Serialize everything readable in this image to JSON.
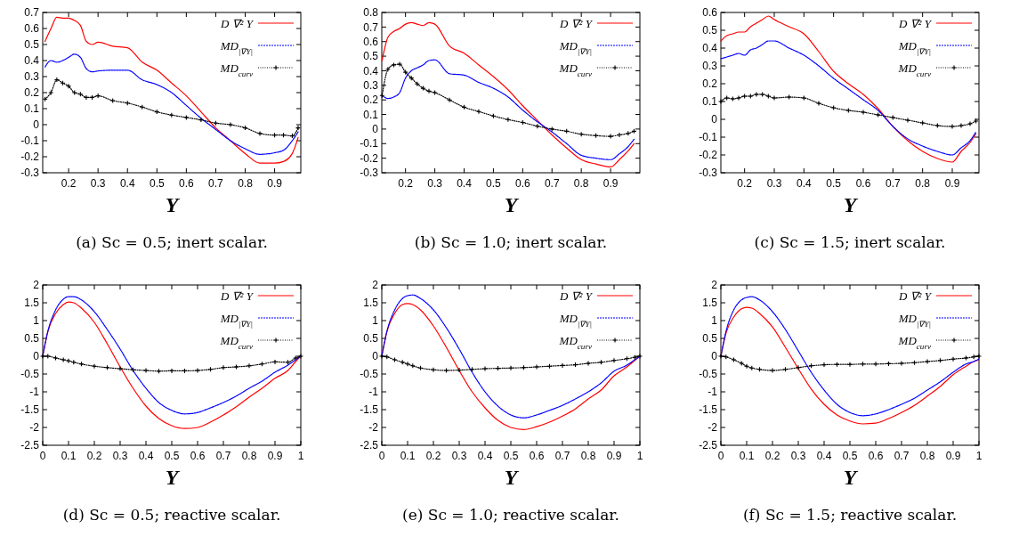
{
  "chart_data": [
    {
      "type": "line",
      "title": "(a) Sc = 0.5; inert scalar.",
      "xlabel": "Y",
      "xlim": [
        0.112,
        0.989
      ],
      "xticks": [
        0.2,
        0.3,
        0.4,
        0.5,
        0.6,
        0.7,
        0.8,
        0.9
      ],
      "ylim": [
        -0.3,
        0.7
      ],
      "yticks": [
        -0.3,
        -0.2,
        -0.1,
        0,
        0.1,
        0.2,
        0.3,
        0.4,
        0.5,
        0.6,
        0.7
      ],
      "legend": "top right",
      "grid": false,
      "x": [
        0.12,
        0.14,
        0.16,
        0.18,
        0.2,
        0.22,
        0.24,
        0.26,
        0.28,
        0.3,
        0.35,
        0.4,
        0.45,
        0.5,
        0.55,
        0.6,
        0.65,
        0.7,
        0.75,
        0.8,
        0.85,
        0.9,
        0.93,
        0.96,
        0.98
      ],
      "series": [
        {
          "name": "D ∇² Y",
          "color": "#ff0000",
          "line_style": "solid",
          "marker": "none",
          "values": [
            0.52,
            0.6,
            0.67,
            0.665,
            0.665,
            0.65,
            0.62,
            0.52,
            0.5,
            0.515,
            0.49,
            0.48,
            0.39,
            0.34,
            0.26,
            0.18,
            0.08,
            -0.02,
            -0.1,
            -0.18,
            -0.24,
            -0.24,
            -0.23,
            -0.18,
            -0.08
          ]
        },
        {
          "name": "MD$_{|∇Y|}$",
          "color": "#0000ff",
          "line_style": "dashed",
          "marker": "none",
          "values": [
            0.36,
            0.4,
            0.39,
            0.4,
            0.42,
            0.44,
            0.42,
            0.35,
            0.33,
            0.335,
            0.34,
            0.34,
            0.28,
            0.25,
            0.2,
            0.12,
            0.04,
            -0.03,
            -0.1,
            -0.15,
            -0.185,
            -0.175,
            -0.16,
            -0.1,
            -0.045
          ]
        },
        {
          "name": "MD$_{curv}$",
          "color": "#000000",
          "line_style": "dotted",
          "marker": "cross",
          "values": [
            0.16,
            0.2,
            0.28,
            0.26,
            0.24,
            0.2,
            0.19,
            0.17,
            0.17,
            0.18,
            0.15,
            0.135,
            0.11,
            0.08,
            0.06,
            0.045,
            0.03,
            0.01,
            0,
            -0.02,
            -0.055,
            -0.065,
            -0.065,
            -0.07,
            -0.02
          ]
        }
      ]
    },
    {
      "type": "line",
      "title": "(b) Sc = 1.0; inert scalar.",
      "xlabel": "Y",
      "xlim": [
        0.119,
        1.0
      ],
      "xticks": [
        0.2,
        0.3,
        0.4,
        0.5,
        0.6,
        0.7,
        0.8,
        0.9
      ],
      "ylim": [
        -0.3,
        0.8
      ],
      "yticks": [
        -0.3,
        -0.2,
        -0.1,
        0,
        0.1,
        0.2,
        0.3,
        0.4,
        0.5,
        0.6,
        0.7,
        0.8
      ],
      "legend": "top right",
      "grid": false,
      "x": [
        0.12,
        0.14,
        0.16,
        0.18,
        0.2,
        0.22,
        0.24,
        0.26,
        0.28,
        0.3,
        0.35,
        0.4,
        0.45,
        0.5,
        0.55,
        0.6,
        0.65,
        0.7,
        0.75,
        0.8,
        0.85,
        0.9,
        0.93,
        0.96,
        0.98
      ],
      "series": [
        {
          "name": "D ∇² Y",
          "color": "#ff0000",
          "line_style": "solid",
          "marker": "none",
          "values": [
            0.47,
            0.63,
            0.67,
            0.69,
            0.72,
            0.73,
            0.72,
            0.71,
            0.73,
            0.72,
            0.57,
            0.52,
            0.44,
            0.36,
            0.27,
            0.16,
            0.06,
            -0.04,
            -0.13,
            -0.21,
            -0.24,
            -0.26,
            -0.21,
            -0.15,
            -0.1
          ]
        },
        {
          "name": "MD$_{|∇Y|}$",
          "color": "#0000ff",
          "line_style": "dashed",
          "marker": "none",
          "values": [
            0.23,
            0.21,
            0.22,
            0.25,
            0.35,
            0.4,
            0.42,
            0.44,
            0.47,
            0.475,
            0.38,
            0.37,
            0.32,
            0.28,
            0.22,
            0.13,
            0.05,
            -0.02,
            -0.1,
            -0.18,
            -0.2,
            -0.21,
            -0.17,
            -0.12,
            -0.07
          ]
        },
        {
          "name": "MD$_{curv}$",
          "color": "#000000",
          "line_style": "dotted",
          "marker": "cross",
          "values": [
            0.23,
            0.41,
            0.44,
            0.445,
            0.39,
            0.35,
            0.31,
            0.28,
            0.26,
            0.25,
            0.2,
            0.15,
            0.12,
            0.09,
            0.065,
            0.045,
            0.02,
            0,
            -0.015,
            -0.035,
            -0.045,
            -0.05,
            -0.04,
            -0.03,
            -0.015
          ]
        }
      ]
    },
    {
      "type": "line",
      "title": "(c) Sc = 1.5; inert scalar.",
      "xlabel": "Y",
      "xlim": [
        0.12,
        0.99
      ],
      "xticks": [
        0.2,
        0.3,
        0.4,
        0.5,
        0.6,
        0.7,
        0.8,
        0.9
      ],
      "ylim": [
        -0.3,
        0.6
      ],
      "yticks": [
        -0.3,
        -0.2,
        -0.1,
        0,
        0.1,
        0.2,
        0.3,
        0.4,
        0.5,
        0.6
      ],
      "legend": "top right",
      "grid": false,
      "x": [
        0.12,
        0.14,
        0.16,
        0.18,
        0.2,
        0.22,
        0.24,
        0.26,
        0.28,
        0.3,
        0.35,
        0.4,
        0.45,
        0.5,
        0.55,
        0.6,
        0.65,
        0.7,
        0.75,
        0.8,
        0.85,
        0.9,
        0.93,
        0.96,
        0.98
      ],
      "series": [
        {
          "name": "D ∇² Y",
          "color": "#ff0000",
          "line_style": "solid",
          "marker": "none",
          "values": [
            0.44,
            0.47,
            0.48,
            0.49,
            0.49,
            0.52,
            0.54,
            0.56,
            0.58,
            0.56,
            0.52,
            0.48,
            0.38,
            0.27,
            0.2,
            0.14,
            0.06,
            -0.04,
            -0.12,
            -0.18,
            -0.22,
            -0.24,
            -0.18,
            -0.13,
            -0.08
          ]
        },
        {
          "name": "MD$_{|∇Y|}$",
          "color": "#0000ff",
          "line_style": "dashed",
          "marker": "none",
          "values": [
            0.34,
            0.35,
            0.36,
            0.37,
            0.36,
            0.39,
            0.4,
            0.42,
            0.44,
            0.44,
            0.4,
            0.36,
            0.3,
            0.23,
            0.17,
            0.11,
            0.05,
            -0.04,
            -0.11,
            -0.15,
            -0.18,
            -0.2,
            -0.16,
            -0.12,
            -0.07
          ]
        },
        {
          "name": "MD$_{curv}$",
          "color": "#000000",
          "line_style": "dotted",
          "marker": "cross",
          "values": [
            0.1,
            0.12,
            0.115,
            0.12,
            0.13,
            0.13,
            0.14,
            0.14,
            0.13,
            0.12,
            0.125,
            0.12,
            0.09,
            0.065,
            0.05,
            0.04,
            0.025,
            0.01,
            -0.005,
            -0.02,
            -0.035,
            -0.04,
            -0.035,
            -0.025,
            -0.01
          ]
        }
      ]
    },
    {
      "type": "line",
      "title": "(d) Sc = 0.5; reactive scalar.",
      "xlabel": "Y",
      "xlim": [
        0,
        1
      ],
      "xticks": [
        0,
        0.1,
        0.2,
        0.3,
        0.4,
        0.5,
        0.6,
        0.7,
        0.8,
        0.9,
        1
      ],
      "ylim": [
        -2.5,
        2
      ],
      "yticks": [
        -2.5,
        -2,
        -1.5,
        -1,
        -0.5,
        0,
        0.5,
        1,
        1.5,
        2
      ],
      "legend": "top right",
      "grid": false,
      "x": [
        0,
        0.02,
        0.05,
        0.08,
        0.1,
        0.12,
        0.15,
        0.2,
        0.25,
        0.3,
        0.35,
        0.4,
        0.45,
        0.5,
        0.55,
        0.6,
        0.65,
        0.7,
        0.75,
        0.8,
        0.85,
        0.9,
        0.95,
        0.98,
        1
      ],
      "series": [
        {
          "name": "D ∇² Y",
          "color": "#ff0000",
          "line_style": "solid",
          "marker": "none",
          "values": [
            0,
            0.7,
            1.2,
            1.45,
            1.52,
            1.5,
            1.35,
            0.95,
            0.35,
            -0.3,
            -0.9,
            -1.4,
            -1.75,
            -1.95,
            -2.03,
            -2.0,
            -1.85,
            -1.65,
            -1.42,
            -1.15,
            -0.9,
            -0.62,
            -0.4,
            -0.15,
            0
          ]
        },
        {
          "name": "MD$_{|∇Y|}$",
          "color": "#0000ff",
          "line_style": "dashed",
          "marker": "none",
          "values": [
            0,
            0.7,
            1.3,
            1.6,
            1.67,
            1.67,
            1.58,
            1.25,
            0.75,
            0.2,
            -0.4,
            -0.9,
            -1.3,
            -1.52,
            -1.62,
            -1.58,
            -1.45,
            -1.3,
            -1.12,
            -0.9,
            -0.7,
            -0.45,
            -0.25,
            -0.1,
            0
          ]
        },
        {
          "name": "MD$_{curv}$",
          "color": "#000000",
          "line_style": "dotted",
          "marker": "cross",
          "values": [
            0,
            0,
            -0.05,
            -0.1,
            -0.13,
            -0.17,
            -0.22,
            -0.28,
            -0.32,
            -0.35,
            -0.38,
            -0.4,
            -0.42,
            -0.41,
            -0.41,
            -0.4,
            -0.37,
            -0.32,
            -0.3,
            -0.27,
            -0.22,
            -0.16,
            -0.17,
            -0.05,
            0
          ]
        }
      ]
    },
    {
      "type": "line",
      "title": "(e) Sc = 1.0; reactive scalar.",
      "xlabel": "Y",
      "xlim": [
        0,
        1
      ],
      "xticks": [
        0,
        0.1,
        0.2,
        0.3,
        0.4,
        0.5,
        0.6,
        0.7,
        0.8,
        0.9,
        1
      ],
      "ylim": [
        -2.5,
        2
      ],
      "yticks": [
        -2.5,
        -2,
        -1.5,
        -1,
        -0.5,
        0,
        0.5,
        1,
        1.5,
        2
      ],
      "legend": "top right",
      "grid": false,
      "x": [
        0,
        0.02,
        0.05,
        0.08,
        0.1,
        0.12,
        0.15,
        0.2,
        0.25,
        0.3,
        0.35,
        0.4,
        0.45,
        0.5,
        0.55,
        0.6,
        0.65,
        0.7,
        0.75,
        0.8,
        0.85,
        0.9,
        0.95,
        0.98,
        1
      ],
      "series": [
        {
          "name": "D ∇² Y",
          "color": "#ff0000",
          "line_style": "solid",
          "marker": "none",
          "values": [
            0,
            0.7,
            1.2,
            1.45,
            1.48,
            1.45,
            1.3,
            0.85,
            0.25,
            -0.4,
            -1.0,
            -1.45,
            -1.8,
            -2.0,
            -2.06,
            -1.98,
            -1.85,
            -1.68,
            -1.48,
            -1.2,
            -0.95,
            -0.55,
            -0.3,
            -0.12,
            0
          ]
        },
        {
          "name": "MD$_{|∇Y|}$",
          "color": "#0000ff",
          "line_style": "dashed",
          "marker": "none",
          "values": [
            0,
            0.7,
            1.3,
            1.62,
            1.7,
            1.72,
            1.62,
            1.3,
            0.8,
            0.2,
            -0.45,
            -1.0,
            -1.4,
            -1.65,
            -1.73,
            -1.65,
            -1.52,
            -1.38,
            -1.2,
            -1.0,
            -0.75,
            -0.42,
            -0.25,
            -0.1,
            0
          ]
        },
        {
          "name": "MD$_{curv}$",
          "color": "#000000",
          "line_style": "dotted",
          "marker": "cross",
          "values": [
            0,
            -0.02,
            -0.1,
            -0.17,
            -0.22,
            -0.27,
            -0.33,
            -0.38,
            -0.4,
            -0.39,
            -0.37,
            -0.35,
            -0.34,
            -0.33,
            -0.32,
            -0.3,
            -0.28,
            -0.26,
            -0.24,
            -0.2,
            -0.17,
            -0.12,
            -0.07,
            -0.03,
            0
          ]
        }
      ]
    },
    {
      "type": "line",
      "title": "(f) Sc = 1.5; reactive scalar.",
      "xlabel": "Y",
      "xlim": [
        0,
        1
      ],
      "xticks": [
        0,
        0.1,
        0.2,
        0.3,
        0.4,
        0.5,
        0.6,
        0.7,
        0.8,
        0.9,
        1
      ],
      "ylim": [
        -2.5,
        2
      ],
      "yticks": [
        -2.5,
        -2,
        -1.5,
        -1,
        -0.5,
        0,
        0.5,
        1,
        1.5,
        2
      ],
      "legend": "top right",
      "grid": false,
      "x": [
        0,
        0.02,
        0.05,
        0.08,
        0.1,
        0.12,
        0.15,
        0.2,
        0.25,
        0.3,
        0.35,
        0.4,
        0.45,
        0.5,
        0.55,
        0.6,
        0.65,
        0.7,
        0.75,
        0.8,
        0.85,
        0.9,
        0.95,
        0.98,
        1
      ],
      "series": [
        {
          "name": "D ∇² Y",
          "color": "#ff0000",
          "line_style": "solid",
          "marker": "none",
          "values": [
            0,
            0.65,
            1.1,
            1.33,
            1.37,
            1.35,
            1.2,
            0.82,
            0.25,
            -0.35,
            -0.92,
            -1.35,
            -1.65,
            -1.82,
            -1.9,
            -1.88,
            -1.75,
            -1.58,
            -1.38,
            -1.12,
            -0.85,
            -0.52,
            -0.28,
            -0.15,
            -0.1
          ]
        },
        {
          "name": "MD$_{|∇Y|}$",
          "color": "#0000ff",
          "line_style": "dashed",
          "marker": "none",
          "values": [
            0,
            0.7,
            1.3,
            1.58,
            1.65,
            1.67,
            1.58,
            1.25,
            0.75,
            0.15,
            -0.45,
            -0.95,
            -1.35,
            -1.58,
            -1.67,
            -1.62,
            -1.5,
            -1.35,
            -1.18,
            -0.95,
            -0.72,
            -0.45,
            -0.22,
            -0.15,
            -0.08
          ]
        },
        {
          "name": "MD$_{curv}$",
          "color": "#000000",
          "line_style": "dotted",
          "marker": "cross",
          "values": [
            0,
            -0.02,
            -0.1,
            -0.2,
            -0.28,
            -0.33,
            -0.37,
            -0.4,
            -0.37,
            -0.32,
            -0.27,
            -0.24,
            -0.23,
            -0.23,
            -0.22,
            -0.22,
            -0.21,
            -0.2,
            -0.18,
            -0.15,
            -0.12,
            -0.08,
            -0.05,
            -0.02,
            0
          ]
        }
      ]
    }
  ]
}
